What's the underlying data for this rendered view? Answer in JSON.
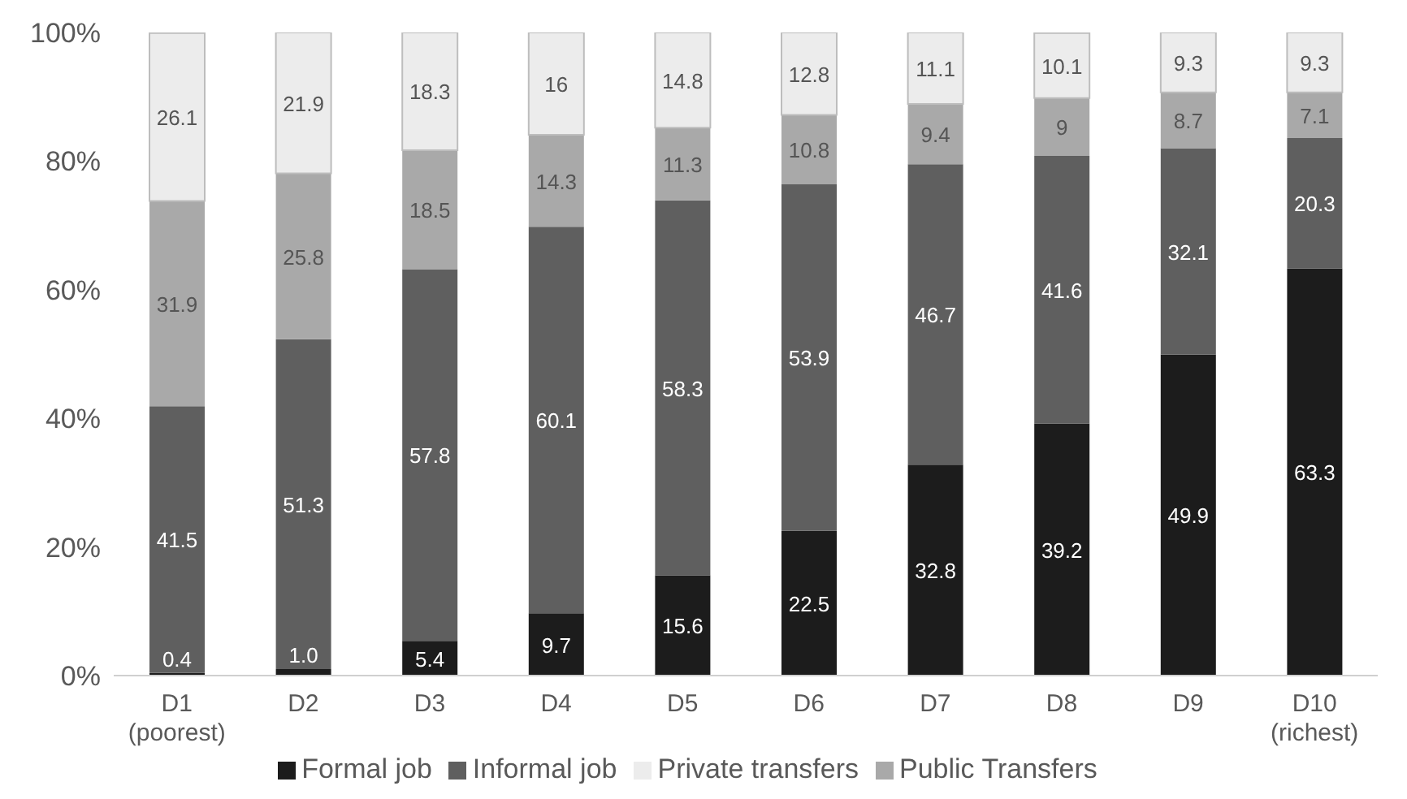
{
  "chart_data": {
    "type": "bar",
    "stacked": true,
    "categories": [
      "D1\n(poorest)",
      "D2",
      "D3",
      "D4",
      "D5",
      "D6",
      "D7",
      "D8",
      "D9",
      "D10\n(richest)"
    ],
    "series": [
      {
        "name": "Formal job",
        "color": "#1c1c1c",
        "values": [
          0.4,
          1.0,
          5.4,
          9.7,
          15.6,
          22.5,
          32.8,
          39.2,
          49.9,
          63.3
        ],
        "value_labels": [
          "0.4",
          "1.0",
          "5.4",
          "9.7",
          "15.6",
          "22.5",
          "32.8",
          "39.2",
          "49.9",
          "63.3"
        ]
      },
      {
        "name": "Informal job",
        "color": "#5f5f5f",
        "values": [
          41.5,
          51.3,
          57.8,
          60.1,
          58.3,
          53.9,
          46.7,
          41.6,
          32.1,
          20.3
        ],
        "value_labels": [
          "41.5",
          "51.3",
          "57.8",
          "60.1",
          "58.3",
          "53.9",
          "46.7",
          "41.6",
          "32.1",
          "20.3"
        ]
      },
      {
        "name": "Public Transfers",
        "color": "#a9a9a9",
        "values": [
          31.9,
          25.8,
          18.5,
          14.3,
          11.3,
          10.8,
          9.4,
          9,
          8.7,
          7.1
        ],
        "value_labels": [
          "31.9",
          "25.8",
          "18.5",
          "14.3",
          "11.3",
          "10.8",
          "9.4",
          "9",
          "8.7",
          "7.1"
        ]
      },
      {
        "name": "Private transfers",
        "color": "#ececec",
        "values": [
          26.1,
          21.9,
          18.3,
          16,
          14.8,
          12.8,
          11.1,
          10.1,
          9.3,
          9.3
        ],
        "value_labels": [
          "26.1",
          "21.9",
          "18.3",
          "16",
          "14.8",
          "12.8",
          "11.1",
          "10.1",
          "9.3",
          "9.3"
        ]
      }
    ],
    "ylim": [
      0,
      100
    ],
    "yticks": [
      {
        "value": 0,
        "label": "0%"
      },
      {
        "value": 20,
        "label": "20%"
      },
      {
        "value": 40,
        "label": "40%"
      },
      {
        "value": 60,
        "label": "60%"
      },
      {
        "value": 80,
        "label": "80%"
      },
      {
        "value": 100,
        "label": "100%"
      }
    ],
    "grid": false,
    "legend": "bottom"
  }
}
